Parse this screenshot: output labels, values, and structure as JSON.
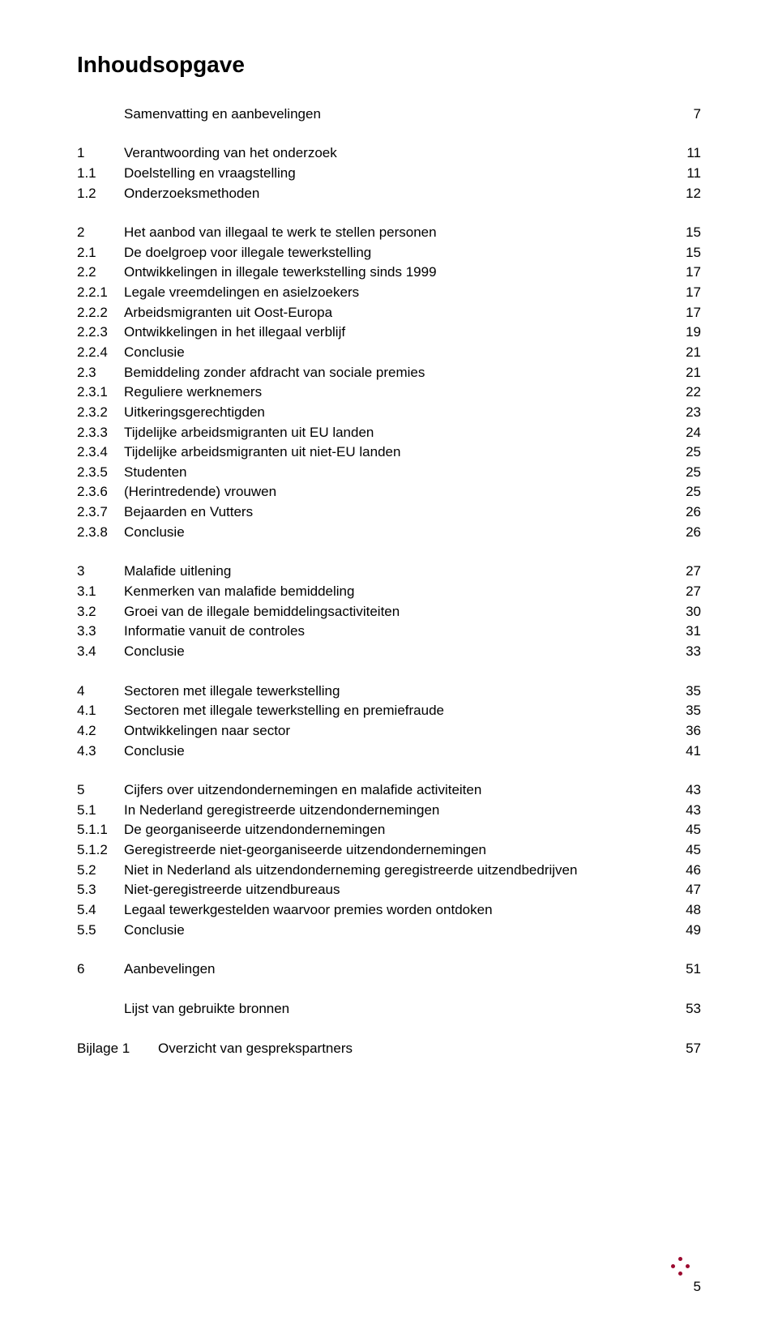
{
  "title": "Inhoudsopgave",
  "summary": {
    "text": "Samenvatting en aanbevelingen",
    "page": "7"
  },
  "sections": [
    {
      "num": "1",
      "text": "Verantwoording van het onderzoek",
      "page": "11",
      "items": [
        {
          "num": "1.1",
          "text": "Doelstelling en vraagstelling",
          "page": "11"
        },
        {
          "num": "1.2",
          "text": "Onderzoeksmethoden",
          "page": "12"
        }
      ]
    },
    {
      "num": "2",
      "text": "Het aanbod van illegaal te werk te stellen personen",
      "page": "15",
      "items": [
        {
          "num": "2.1",
          "text": "De doelgroep voor illegale tewerkstelling",
          "page": "15"
        },
        {
          "num": "2.2",
          "text": "Ontwikkelingen in illegale tewerkstelling sinds 1999",
          "page": "17"
        },
        {
          "num": "2.2.1",
          "text": "Legale vreemdelingen en asielzoekers",
          "page": "17"
        },
        {
          "num": "2.2.2",
          "text": "Arbeidsmigranten uit Oost-Europa",
          "page": "17"
        },
        {
          "num": "2.2.3",
          "text": "Ontwikkelingen in het illegaal verblijf",
          "page": "19"
        },
        {
          "num": "2.2.4",
          "text": "Conclusie",
          "page": "21"
        },
        {
          "num": "2.3",
          "text": "Bemiddeling zonder afdracht van sociale premies",
          "page": "21"
        },
        {
          "num": "2.3.1",
          "text": "Reguliere werknemers",
          "page": "22"
        },
        {
          "num": "2.3.2",
          "text": "Uitkeringsgerechtigden",
          "page": "23"
        },
        {
          "num": "2.3.3",
          "text": "Tijdelijke arbeidsmigranten uit EU landen",
          "page": "24"
        },
        {
          "num": "2.3.4",
          "text": "Tijdelijke arbeidsmigranten uit niet-EU landen",
          "page": "25"
        },
        {
          "num": "2.3.5",
          "text": "Studenten",
          "page": "25"
        },
        {
          "num": "2.3.6",
          "text": "(Herintredende) vrouwen",
          "page": "25"
        },
        {
          "num": "2.3.7",
          "text": "Bejaarden en Vutters",
          "page": "26"
        },
        {
          "num": "2.3.8",
          "text": "Conclusie",
          "page": "26"
        }
      ]
    },
    {
      "num": "3",
      "text": "Malafide uitlening",
      "page": "27",
      "items": [
        {
          "num": "3.1",
          "text": "Kenmerken van malafide bemiddeling",
          "page": "27"
        },
        {
          "num": "3.2",
          "text": "Groei van de illegale bemiddelingsactiviteiten",
          "page": "30"
        },
        {
          "num": "3.3",
          "text": "Informatie vanuit de controles",
          "page": "31"
        },
        {
          "num": "3.4",
          "text": "Conclusie",
          "page": "33"
        }
      ]
    },
    {
      "num": "4",
      "text": "Sectoren met illegale tewerkstelling",
      "page": "35",
      "items": [
        {
          "num": "4.1",
          "text": "Sectoren met illegale tewerkstelling en premiefraude",
          "page": "35"
        },
        {
          "num": "4.2",
          "text": "Ontwikkelingen naar sector",
          "page": "36"
        },
        {
          "num": "4.3",
          "text": "Conclusie",
          "page": "41"
        }
      ]
    },
    {
      "num": "5",
      "text": "Cijfers over uitzendondernemingen en malafide activiteiten",
      "page": "43",
      "items": [
        {
          "num": "5.1",
          "text": "In Nederland geregistreerde uitzendondernemingen",
          "page": "43"
        },
        {
          "num": "5.1.1",
          "text": "De georganiseerde uitzendondernemingen",
          "page": "45"
        },
        {
          "num": "5.1.2",
          "text": "Geregistreerde niet-georganiseerde uitzendondernemingen",
          "page": "45"
        },
        {
          "num": "5.2",
          "text": "Niet in Nederland als uitzendonderneming geregistreerde uitzendbedrijven",
          "page": "46"
        },
        {
          "num": "5.3",
          "text": "Niet-geregistreerde uitzendbureaus",
          "page": "47"
        },
        {
          "num": "5.4",
          "text": "Legaal tewerkgestelden waarvoor premies worden ontdoken",
          "page": "48"
        },
        {
          "num": "5.5",
          "text": "Conclusie",
          "page": "49"
        }
      ]
    },
    {
      "num": "6",
      "text": "Aanbevelingen",
      "page": "51",
      "items": []
    }
  ],
  "tail": [
    {
      "text": "Lijst van gebruikte bronnen",
      "page": "53"
    }
  ],
  "appendix": {
    "label": "Bijlage 1",
    "text": "Overzicht van gesprekspartners",
    "page": "57"
  },
  "pageNumber": "5",
  "colors": {
    "accent": "#9b0a2f",
    "text": "#000000",
    "bg": "#ffffff"
  }
}
